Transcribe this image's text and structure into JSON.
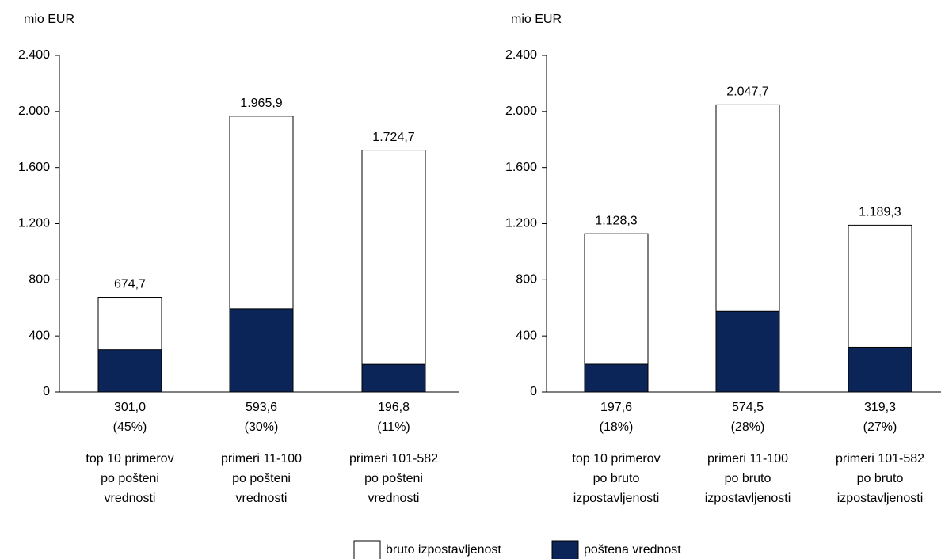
{
  "chart_data": [
    {
      "type": "bar",
      "y_label": "mio EUR",
      "categories": [
        "top 10 primerov\npo pošteni\nvrednosti",
        "primeri 11-100\npo pošteni\nvrednosti",
        "primeri 101-582\npo pošteni\nvrednosti"
      ],
      "series": [
        {
          "name": "bruto izpostavljenost",
          "color": "#ffffff",
          "values": [
            674.7,
            1965.9,
            1724.7
          ],
          "value_labels": [
            "674,7",
            "1.965,9",
            "1.724,7"
          ]
        },
        {
          "name": "poštena vrednost",
          "color": "#0b2559",
          "values": [
            301.0,
            593.6,
            196.8
          ],
          "value_labels": [
            "301,0",
            "593,6",
            "196,8"
          ],
          "shares": [
            "(45%)",
            "(30%)",
            "(11%)"
          ]
        }
      ],
      "ylim": [
        0,
        2400
      ],
      "yticks": [
        0,
        400,
        800,
        {
          "value": 1200,
          "label": "1.200"
        },
        {
          "value": 1600,
          "label": "1.600"
        },
        {
          "value": 2000,
          "label": "2.000"
        },
        {
          "value": 2400,
          "label": "2.400"
        }
      ]
    },
    {
      "type": "bar",
      "y_label": "mio EUR",
      "categories": [
        "top 10 primerov\npo bruto\nizpostavljenosti",
        "primeri 11-100\npo bruto\nizpostavljenosti",
        "primeri 101-582\npo bruto\nizpostavljenosti"
      ],
      "series": [
        {
          "color": "#ffffff",
          "values": [
            1128.3,
            2047.7,
            1189.3
          ],
          "value_labels": [
            "1.128,3",
            "2.047,7",
            "1.189,3"
          ]
        },
        {
          "color": "#0b2559",
          "values": [
            197.6,
            574.5,
            319.3
          ],
          "value_labels": [
            "197,6",
            "574,5",
            "319,3"
          ],
          "shares": [
            "(18%)",
            "(28%)",
            "(27%)"
          ]
        }
      ],
      "ylim": [
        0,
        2400
      ],
      "yticks": [
        0,
        400,
        800,
        {
          "value": 1200,
          "label": "1.200"
        },
        {
          "value": 1600,
          "label": "1.600"
        },
        {
          "value": 2000,
          "label": "2.000"
        },
        {
          "value": 2400,
          "label": "2.400"
        }
      ]
    }
  ]
}
